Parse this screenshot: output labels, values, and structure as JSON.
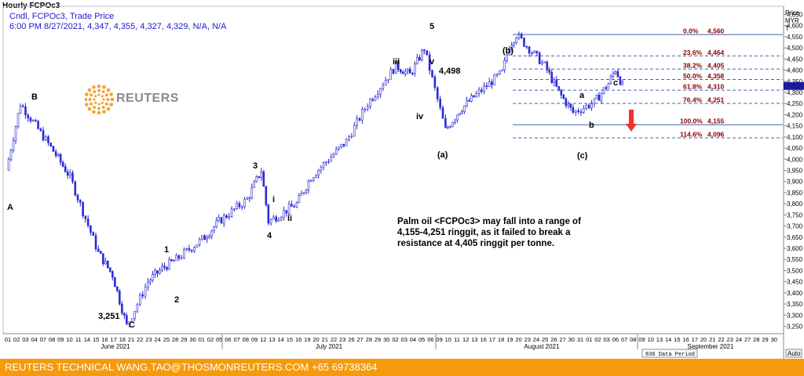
{
  "window_title": "Hourly FCPOc3",
  "header": {
    "line1": "Cndl, FCPOc3, Trade Price",
    "line2": "6:00 PM 8/27/2021, 4,347, 4,355, 4,327, 4,329, N/A, N/A"
  },
  "logo": {
    "text": "REUTERS"
  },
  "price_axis": {
    "title": "Price",
    "unit": "MYR",
    "unit2": "T",
    "ticks": [
      4650,
      4600,
      4550,
      4500,
      4450,
      4400,
      4350,
      4300,
      4250,
      4200,
      4150,
      4100,
      4050,
      4000,
      3950,
      3900,
      3850,
      3800,
      3750,
      3700,
      3650,
      3600,
      3550,
      3500,
      3450,
      3400,
      3350,
      3300,
      3250
    ],
    "current_value": 4329,
    "auto_label": "Auto"
  },
  "time_axis": {
    "days": [
      "01",
      "02",
      "03",
      "04",
      "07",
      "08",
      "09",
      "10",
      "11",
      "14",
      "15",
      "16",
      "17",
      "18",
      "21",
      "22",
      "23",
      "24",
      "25",
      "28",
      "29",
      "30",
      "01",
      "02",
      "05",
      "06",
      "07",
      "08",
      "09",
      "12",
      "13",
      "14",
      "15",
      "16",
      "19",
      "20",
      "21",
      "22",
      "23",
      "26",
      "27",
      "28",
      "29",
      "30",
      "02",
      "03",
      "04",
      "05",
      "06",
      "09",
      "10",
      "11",
      "12",
      "13",
      "16",
      "17",
      "18",
      "19",
      "20",
      "23",
      "24",
      "25",
      "26",
      "27",
      "30",
      "31",
      "01",
      "02",
      "03",
      "06",
      "07",
      "08",
      "09",
      "10",
      "13",
      "14",
      "15",
      "16",
      "17",
      "20",
      "21",
      "22",
      "23",
      "24",
      "27",
      "28",
      "29",
      "30"
    ],
    "months": [
      "June 2021",
      "July 2021",
      "August 2021",
      "September 2021"
    ],
    "period_label": "836 Data Period"
  },
  "wave_labels": [
    "A",
    "B",
    "3,251",
    "C",
    "1",
    "2",
    "3",
    "i",
    "ii",
    "4",
    "iii",
    "iv",
    "5",
    "v",
    "4,498",
    "(a)",
    "(b)",
    "a",
    "b",
    "c",
    "(c)"
  ],
  "fib_levels": [
    {
      "label": "0.0%",
      "value": "4,560",
      "price": 4560,
      "solid": true
    },
    {
      "label": "23.6%",
      "value": "4,464",
      "price": 4464,
      "solid": false
    },
    {
      "label": "38.2%",
      "value": "4,405",
      "price": 4405,
      "solid": false
    },
    {
      "label": "50.0%",
      "value": "4,358",
      "price": 4358,
      "solid": false
    },
    {
      "label": "61.8%",
      "value": "4,310",
      "price": 4310,
      "solid": false
    },
    {
      "label": "76.4%",
      "value": "4,251",
      "price": 4251,
      "solid": false
    },
    {
      "label": "100.0%",
      "value": "4,155",
      "price": 4155,
      "solid": true
    },
    {
      "label": "114.6%",
      "value": "4,096",
      "price": 4096,
      "solid": false
    }
  ],
  "commentary": {
    "line1": "Palm oil <FCPOc3> may fall into a range of",
    "line2": "4,155-4,251 ringgit, as it failed to break a",
    "line3": "resistance at 4,405 ringgit per tonne."
  },
  "footer": "REUTERS TECHNICAL  WANG.TAO@THOSMONREUTERS.COM  +65 69738364",
  "colors": {
    "candle": "#2a2ad8",
    "fib_line": "#3b66b8",
    "fib_text": "#8b0000",
    "arrow": "#f03030",
    "footer_bg": "#f59a0c"
  },
  "chart_data": {
    "type": "candlestick",
    "title": "Hourly FCPOc3",
    "ylabel": "Price MYR T",
    "ylim": [
      3220,
      4680
    ],
    "x": [
      "2021-06-01",
      "2021-06-03",
      "2021-06-08",
      "2021-06-10",
      "2021-06-14",
      "2021-06-16",
      "2021-06-18",
      "2021-06-21",
      "2021-06-23",
      "2021-06-25",
      "2021-06-29",
      "2021-07-01",
      "2021-07-05",
      "2021-07-07",
      "2021-07-08",
      "2021-07-12",
      "2021-07-14",
      "2021-07-19",
      "2021-07-22",
      "2021-07-26",
      "2021-07-28",
      "2021-07-30",
      "2021-08-02",
      "2021-08-04",
      "2021-08-06",
      "2021-08-10",
      "2021-08-11",
      "2021-08-12",
      "2021-08-16",
      "2021-08-18",
      "2021-08-20",
      "2021-08-23",
      "2021-08-25",
      "2021-08-26",
      "2021-08-27"
    ],
    "series": [
      {
        "values": [
          3950,
          4250,
          4020,
          3920,
          3580,
          3480,
          3251,
          3450,
          3510,
          3550,
          3650,
          3720,
          3820,
          3950,
          3720,
          3800,
          3920,
          4080,
          4250,
          4420,
          4380,
          4498,
          4130,
          4220,
          4280,
          4390,
          4510,
          4560,
          4420,
          4300,
          4210,
          4255,
          4340,
          4405,
          4329
        ]
      }
    ]
  }
}
